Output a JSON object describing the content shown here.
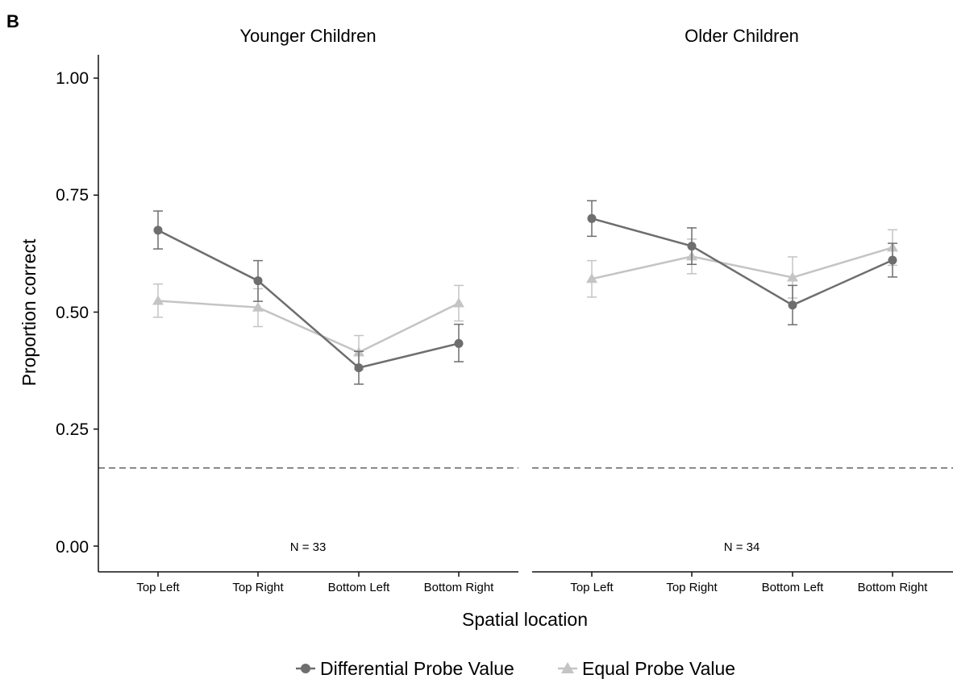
{
  "panel_label": "B",
  "ylabel": "Proportion correct",
  "xlabel": "Spatial location",
  "yticks": [
    "0.00",
    "0.25",
    "0.50",
    "0.75",
    "1.00"
  ],
  "legend": [
    "Differential Probe Value",
    "Equal Probe Value"
  ],
  "colors": {
    "differential": "#6e6e6e",
    "equal": "#c4c4c4",
    "chance_line": "#8a8a8a"
  },
  "chart_data": [
    {
      "type": "line",
      "title": "Younger Children",
      "annotation": "N = 33",
      "categories": [
        "Top Left",
        "Top Right",
        "Bottom Left",
        "Bottom Right"
      ],
      "ylim": [
        0,
        1
      ],
      "reference_line": 0.167,
      "series": [
        {
          "name": "Differential Probe Value",
          "marker": "circle",
          "values": [
            0.675,
            0.567,
            0.381,
            0.433
          ],
          "ci_low": [
            0.635,
            0.523,
            0.346,
            0.394
          ],
          "ci_high": [
            0.716,
            0.61,
            0.416,
            0.474
          ]
        },
        {
          "name": "Equal Probe Value",
          "marker": "triangle",
          "values": [
            0.524,
            0.51,
            0.414,
            0.519
          ],
          "ci_low": [
            0.489,
            0.469,
            0.377,
            0.481
          ],
          "ci_high": [
            0.56,
            0.55,
            0.45,
            0.557
          ]
        }
      ]
    },
    {
      "type": "line",
      "title": "Older Children",
      "annotation": "N = 34",
      "categories": [
        "Top Left",
        "Top Right",
        "Bottom Left",
        "Bottom Right"
      ],
      "ylim": [
        0,
        1
      ],
      "reference_line": 0.167,
      "series": [
        {
          "name": "Differential Probe Value",
          "marker": "circle",
          "values": [
            0.7,
            0.641,
            0.515,
            0.611
          ],
          "ci_low": [
            0.662,
            0.602,
            0.473,
            0.575
          ],
          "ci_high": [
            0.738,
            0.68,
            0.557,
            0.647
          ]
        },
        {
          "name": "Equal Probe Value",
          "marker": "triangle",
          "values": [
            0.571,
            0.619,
            0.574,
            0.638
          ],
          "ci_low": [
            0.532,
            0.582,
            0.53,
            0.6
          ],
          "ci_high": [
            0.61,
            0.656,
            0.618,
            0.676
          ]
        }
      ]
    }
  ]
}
